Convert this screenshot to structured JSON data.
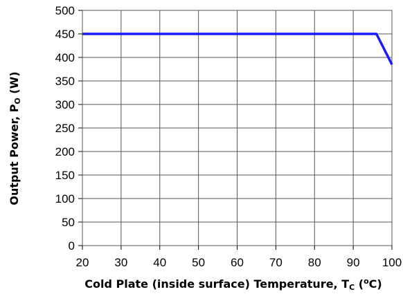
{
  "chart_data": {
    "type": "line",
    "title": "",
    "xlabel_parts": {
      "main": "Cold Plate (inside surface) Temperature, T",
      "sub": "C",
      "open": " (",
      "sup": "o",
      "unit": "C)"
    },
    "ylabel_parts": {
      "main": "Output Power, P",
      "sub": "O",
      "unit": " (W)"
    },
    "xlim": [
      20,
      100
    ],
    "ylim": [
      0,
      500
    ],
    "x_ticks": [
      20,
      30,
      40,
      50,
      60,
      70,
      80,
      90,
      100
    ],
    "y_ticks": [
      0,
      50,
      100,
      150,
      200,
      250,
      300,
      350,
      400,
      450,
      500
    ],
    "grid": true,
    "series": [
      {
        "color": "#1a1aff",
        "x": [
          20,
          96,
          100
        ],
        "y": [
          450,
          450,
          385
        ]
      }
    ]
  }
}
